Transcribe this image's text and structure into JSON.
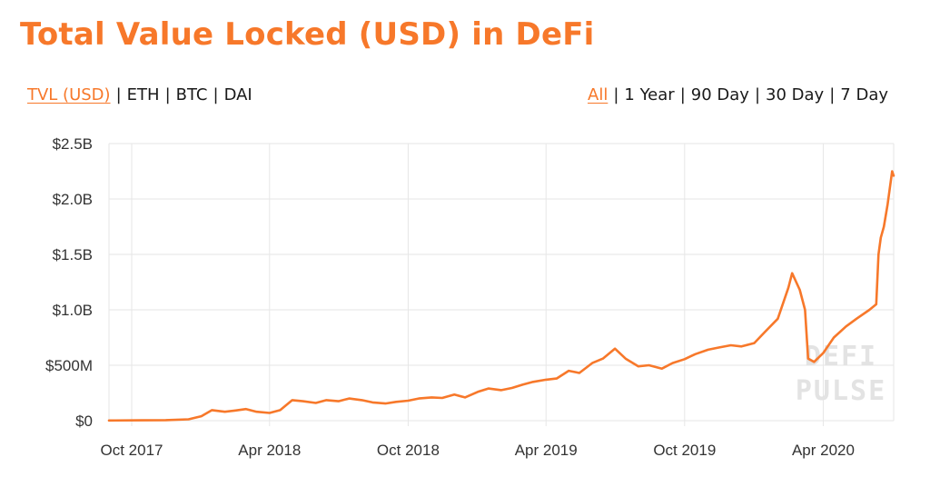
{
  "header": {
    "title": "Total Value Locked (USD) in DeFi"
  },
  "metric_tabs": [
    {
      "label": "TVL (USD)",
      "active": true
    },
    {
      "label": "ETH",
      "active": false
    },
    {
      "label": "BTC",
      "active": false
    },
    {
      "label": "DAI",
      "active": false
    }
  ],
  "range_tabs": [
    {
      "label": "All",
      "active": true
    },
    {
      "label": "1 Year",
      "active": false
    },
    {
      "label": "90 Day",
      "active": false
    },
    {
      "label": "30 Day",
      "active": false
    },
    {
      "label": "7 Day",
      "active": false
    }
  ],
  "watermark": {
    "line1": "DEFI",
    "line2": "PULSE"
  },
  "colors": {
    "accent": "#f7782a",
    "grid": "#e6e6e6",
    "text": "#333333"
  },
  "chart_data": {
    "type": "line",
    "title": "Total Value Locked (USD) in DeFi",
    "xlabel": "",
    "ylabel": "",
    "grid": true,
    "y_range": [
      0,
      2500000000
    ],
    "y_ticks": [
      {
        "value": 0,
        "label": "$0"
      },
      {
        "value": 500000000,
        "label": "$500M"
      },
      {
        "value": 1000000000,
        "label": "$1.0B"
      },
      {
        "value": 1500000000,
        "label": "$1.5B"
      },
      {
        "value": 2000000000,
        "label": "$2.0B"
      },
      {
        "value": 2500000000,
        "label": "$2.5B"
      }
    ],
    "x_range": [
      "2017-09-01",
      "2020-07-03"
    ],
    "x_ticks": [
      {
        "date": "2017-10-01",
        "label": "Oct 2017"
      },
      {
        "date": "2018-04-01",
        "label": "Apr 2018"
      },
      {
        "date": "2018-10-01",
        "label": "Oct 2018"
      },
      {
        "date": "2019-04-01",
        "label": "Apr 2019"
      },
      {
        "date": "2019-10-01",
        "label": "Oct 2019"
      },
      {
        "date": "2020-04-01",
        "label": "Apr 2020"
      }
    ],
    "series": [
      {
        "color": "#f7782a",
        "points": [
          [
            "2017-09-01",
            2000000
          ],
          [
            "2017-10-15",
            3000000
          ],
          [
            "2017-11-15",
            5000000
          ],
          [
            "2017-12-15",
            12000000
          ],
          [
            "2018-01-01",
            40000000
          ],
          [
            "2018-01-15",
            95000000
          ],
          [
            "2018-02-01",
            80000000
          ],
          [
            "2018-02-15",
            92000000
          ],
          [
            "2018-03-01",
            105000000
          ],
          [
            "2018-03-15",
            80000000
          ],
          [
            "2018-04-01",
            70000000
          ],
          [
            "2018-04-15",
            95000000
          ],
          [
            "2018-05-01",
            185000000
          ],
          [
            "2018-05-15",
            175000000
          ],
          [
            "2018-06-01",
            160000000
          ],
          [
            "2018-06-15",
            185000000
          ],
          [
            "2018-07-01",
            175000000
          ],
          [
            "2018-07-15",
            200000000
          ],
          [
            "2018-08-01",
            185000000
          ],
          [
            "2018-08-15",
            165000000
          ],
          [
            "2018-09-01",
            155000000
          ],
          [
            "2018-09-15",
            170000000
          ],
          [
            "2018-10-01",
            180000000
          ],
          [
            "2018-10-15",
            200000000
          ],
          [
            "2018-11-01",
            210000000
          ],
          [
            "2018-11-15",
            205000000
          ],
          [
            "2018-12-01",
            235000000
          ],
          [
            "2018-12-15",
            210000000
          ],
          [
            "2019-01-01",
            260000000
          ],
          [
            "2019-01-15",
            290000000
          ],
          [
            "2019-02-01",
            275000000
          ],
          [
            "2019-02-15",
            295000000
          ],
          [
            "2019-03-01",
            325000000
          ],
          [
            "2019-03-15",
            350000000
          ],
          [
            "2019-04-01",
            370000000
          ],
          [
            "2019-04-15",
            380000000
          ],
          [
            "2019-05-01",
            450000000
          ],
          [
            "2019-05-15",
            430000000
          ],
          [
            "2019-06-01",
            520000000
          ],
          [
            "2019-06-15",
            560000000
          ],
          [
            "2019-07-01",
            650000000
          ],
          [
            "2019-07-15",
            560000000
          ],
          [
            "2019-08-01",
            490000000
          ],
          [
            "2019-08-15",
            500000000
          ],
          [
            "2019-09-01",
            470000000
          ],
          [
            "2019-09-15",
            520000000
          ],
          [
            "2019-10-01",
            555000000
          ],
          [
            "2019-10-15",
            600000000
          ],
          [
            "2019-11-01",
            640000000
          ],
          [
            "2019-11-15",
            660000000
          ],
          [
            "2019-12-01",
            680000000
          ],
          [
            "2019-12-15",
            670000000
          ],
          [
            "2020-01-01",
            700000000
          ],
          [
            "2020-01-15",
            800000000
          ],
          [
            "2020-02-01",
            920000000
          ],
          [
            "2020-02-15",
            1200000000
          ],
          [
            "2020-02-20",
            1330000000
          ],
          [
            "2020-03-01",
            1180000000
          ],
          [
            "2020-03-08",
            1000000000
          ],
          [
            "2020-03-12",
            560000000
          ],
          [
            "2020-03-20",
            530000000
          ],
          [
            "2020-04-01",
            610000000
          ],
          [
            "2020-04-15",
            750000000
          ],
          [
            "2020-05-01",
            850000000
          ],
          [
            "2020-05-15",
            920000000
          ],
          [
            "2020-06-01",
            1000000000
          ],
          [
            "2020-06-10",
            1050000000
          ],
          [
            "2020-06-13",
            1500000000
          ],
          [
            "2020-06-16",
            1650000000
          ],
          [
            "2020-06-20",
            1750000000
          ],
          [
            "2020-06-25",
            1950000000
          ],
          [
            "2020-07-01",
            2250000000
          ],
          [
            "2020-07-03",
            2210000000
          ]
        ]
      }
    ]
  }
}
